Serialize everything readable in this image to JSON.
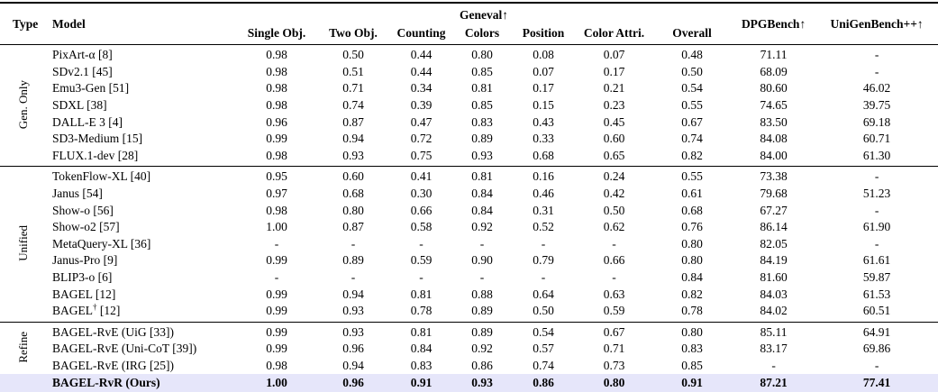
{
  "table": {
    "highlight_color": "#e6e6fa",
    "text_color": "#000000",
    "header": {
      "type": "Type",
      "model": "Model",
      "geneval_group": "Geneval↑",
      "geneval_cols": [
        "Single Obj.",
        "Two Obj.",
        "Counting",
        "Colors",
        "Position",
        "Color Attri.",
        "Overall"
      ],
      "dpgbench": "DPGBench↑",
      "unigenbench": "UniGenBench++↑"
    },
    "sections": [
      {
        "label": "Gen. Only",
        "rows": [
          {
            "model": "PixArt-α [8]",
            "values": [
              "0.98",
              "0.50",
              "0.44",
              "0.80",
              "0.08",
              "0.07",
              "0.48",
              "71.11",
              "-"
            ],
            "bold": false,
            "highlight": false
          },
          {
            "model": "SDv2.1 [45]",
            "values": [
              "0.98",
              "0.51",
              "0.44",
              "0.85",
              "0.07",
              "0.17",
              "0.50",
              "68.09",
              "-"
            ],
            "bold": false,
            "highlight": false
          },
          {
            "model": "Emu3-Gen [51]",
            "values": [
              "0.98",
              "0.71",
              "0.34",
              "0.81",
              "0.17",
              "0.21",
              "0.54",
              "80.60",
              "46.02"
            ],
            "bold": false,
            "highlight": false
          },
          {
            "model": "SDXL [38]",
            "values": [
              "0.98",
              "0.74",
              "0.39",
              "0.85",
              "0.15",
              "0.23",
              "0.55",
              "74.65",
              "39.75"
            ],
            "bold": false,
            "highlight": false
          },
          {
            "model": "DALL-E 3 [4]",
            "values": [
              "0.96",
              "0.87",
              "0.47",
              "0.83",
              "0.43",
              "0.45",
              "0.67",
              "83.50",
              "69.18"
            ],
            "bold": false,
            "highlight": false
          },
          {
            "model": "SD3-Medium [15]",
            "values": [
              "0.99",
              "0.94",
              "0.72",
              "0.89",
              "0.33",
              "0.60",
              "0.74",
              "84.08",
              "60.71"
            ],
            "bold": false,
            "highlight": false
          },
          {
            "model": "FLUX.1-dev [28]",
            "values": [
              "0.98",
              "0.93",
              "0.75",
              "0.93",
              "0.68",
              "0.65",
              "0.82",
              "84.00",
              "61.30"
            ],
            "bold": false,
            "highlight": false
          }
        ]
      },
      {
        "label": "Unified",
        "rows": [
          {
            "model": "TokenFlow-XL [40]",
            "values": [
              "0.95",
              "0.60",
              "0.41",
              "0.81",
              "0.16",
              "0.24",
              "0.55",
              "73.38",
              "-"
            ],
            "bold": false,
            "highlight": false
          },
          {
            "model": "Janus [54]",
            "values": [
              "0.97",
              "0.68",
              "0.30",
              "0.84",
              "0.46",
              "0.42",
              "0.61",
              "79.68",
              "51.23"
            ],
            "bold": false,
            "highlight": false
          },
          {
            "model": "Show-o [56]",
            "values": [
              "0.98",
              "0.80",
              "0.66",
              "0.84",
              "0.31",
              "0.50",
              "0.68",
              "67.27",
              "-"
            ],
            "bold": false,
            "highlight": false
          },
          {
            "model": "Show-o2 [57]",
            "values": [
              "1.00",
              "0.87",
              "0.58",
              "0.92",
              "0.52",
              "0.62",
              "0.76",
              "86.14",
              "61.90"
            ],
            "bold": false,
            "highlight": false
          },
          {
            "model": "MetaQuery-XL [36]",
            "values": [
              "-",
              "-",
              "-",
              "-",
              "-",
              "-",
              "0.80",
              "82.05",
              "-"
            ],
            "bold": false,
            "highlight": false
          },
          {
            "model": "Janus-Pro [9]",
            "values": [
              "0.99",
              "0.89",
              "0.59",
              "0.90",
              "0.79",
              "0.66",
              "0.80",
              "84.19",
              "61.61"
            ],
            "bold": false,
            "highlight": false
          },
          {
            "model": "BLIP3-o [6]",
            "values": [
              "-",
              "-",
              "-",
              "-",
              "-",
              "-",
              "0.84",
              "81.60",
              "59.87"
            ],
            "bold": false,
            "highlight": false
          },
          {
            "model": "BAGEL [12]",
            "values": [
              "0.99",
              "0.94",
              "0.81",
              "0.88",
              "0.64",
              "0.63",
              "0.82",
              "84.03",
              "61.53"
            ],
            "bold": false,
            "highlight": false
          },
          {
            "model": "BAGEL† [12]",
            "values": [
              "0.99",
              "0.93",
              "0.78",
              "0.89",
              "0.50",
              "0.59",
              "0.78",
              "84.02",
              "60.51"
            ],
            "bold": false,
            "highlight": false
          }
        ]
      },
      {
        "label": "Refine",
        "rows": [
          {
            "model": "BAGEL-RvE (UiG [33])",
            "values": [
              "0.99",
              "0.93",
              "0.81",
              "0.89",
              "0.54",
              "0.67",
              "0.80",
              "85.11",
              "64.91"
            ],
            "bold": false,
            "highlight": false
          },
          {
            "model": "BAGEL-RvE (Uni-CoT [39])",
            "values": [
              "0.99",
              "0.96",
              "0.84",
              "0.92",
              "0.57",
              "0.71",
              "0.83",
              "83.17",
              "69.86"
            ],
            "bold": false,
            "highlight": false
          },
          {
            "model": "BAGEL-RvE (IRG [25])",
            "values": [
              "0.98",
              "0.94",
              "0.83",
              "0.86",
              "0.74",
              "0.73",
              "0.85",
              "-",
              "-"
            ],
            "bold": false,
            "highlight": false
          },
          {
            "model": "BAGEL-RvR (Ours)",
            "values": [
              "1.00",
              "0.96",
              "0.91",
              "0.93",
              "0.86",
              "0.80",
              "0.91",
              "87.21",
              "77.41"
            ],
            "bold": true,
            "highlight": true
          }
        ]
      }
    ]
  }
}
